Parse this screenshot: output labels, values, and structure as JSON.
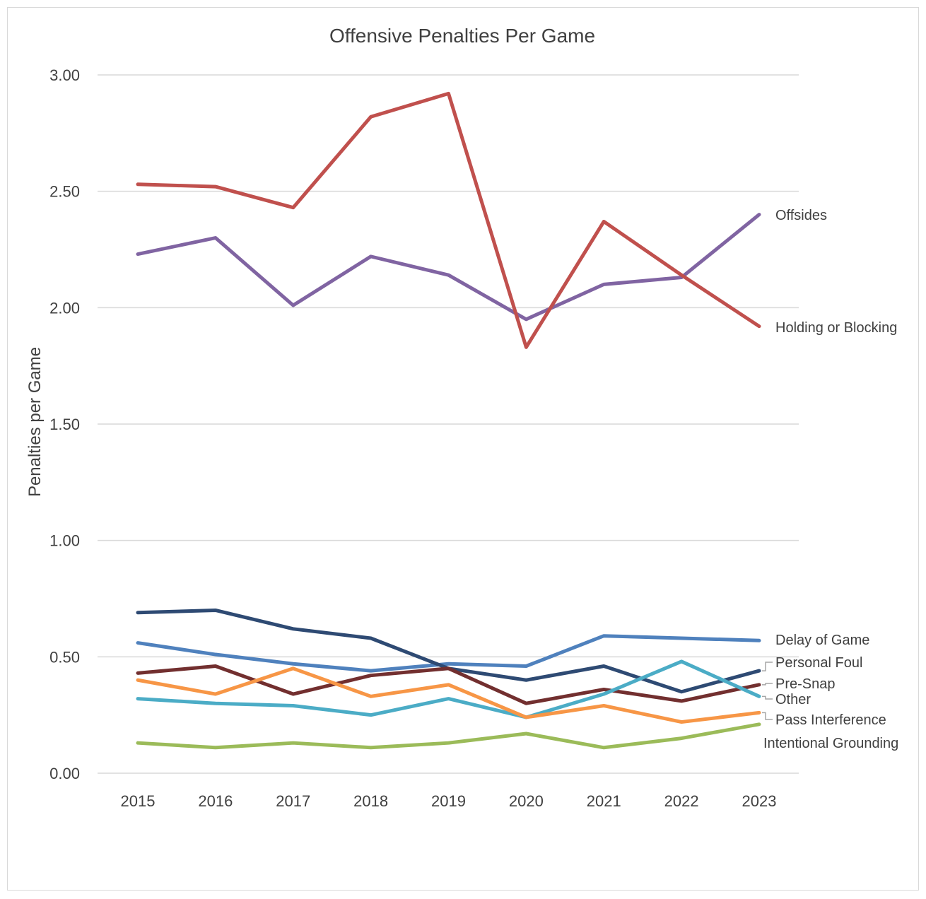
{
  "chart_data": {
    "type": "line",
    "title": "Offensive Penalties Per Game",
    "xlabel": "",
    "ylabel": "Penalties per Game",
    "ylim": [
      0,
      3
    ],
    "yticks": [
      "0.00",
      "0.50",
      "1.00",
      "1.50",
      "2.00",
      "2.50",
      "3.00"
    ],
    "grid": "horizontal",
    "legend": "inline labels at right end of lines",
    "categories": [
      "2015",
      "2016",
      "2017",
      "2018",
      "2019",
      "2020",
      "2021",
      "2022",
      "2023"
    ],
    "series": [
      {
        "name": "Offsides",
        "color": "#8064A2",
        "values": [
          2.23,
          2.3,
          2.01,
          2.22,
          2.14,
          1.95,
          2.1,
          2.13,
          2.4
        ]
      },
      {
        "name": "Holding or Blocking",
        "color": "#C0504D",
        "values": [
          2.53,
          2.52,
          2.43,
          2.82,
          2.92,
          1.83,
          2.37,
          2.14,
          1.92
        ]
      },
      {
        "name": "Delay of Game",
        "color": "#4F81BD",
        "values": [
          0.56,
          0.51,
          0.47,
          0.44,
          0.47,
          0.46,
          0.59,
          0.58,
          0.57
        ]
      },
      {
        "name": "Personal Foul",
        "color": "#2E4A73",
        "values": [
          0.69,
          0.7,
          0.62,
          0.58,
          0.45,
          0.4,
          0.46,
          0.35,
          0.44
        ]
      },
      {
        "name": "Pre-Snap",
        "color": "#722F2F",
        "values": [
          0.43,
          0.46,
          0.34,
          0.42,
          0.45,
          0.3,
          0.36,
          0.31,
          0.38
        ]
      },
      {
        "name": "Other",
        "color": "#4BACC6",
        "values": [
          0.32,
          0.3,
          0.29,
          0.25,
          0.32,
          0.24,
          0.34,
          0.48,
          0.33
        ]
      },
      {
        "name": "Pass Interference",
        "color": "#F79646",
        "values": [
          0.4,
          0.34,
          0.45,
          0.33,
          0.38,
          0.24,
          0.29,
          0.22,
          0.26
        ]
      },
      {
        "name": "Intentional Grounding",
        "color": "#9BBB59",
        "values": [
          0.13,
          0.11,
          0.13,
          0.11,
          0.13,
          0.17,
          0.11,
          0.15,
          0.21
        ]
      }
    ]
  }
}
